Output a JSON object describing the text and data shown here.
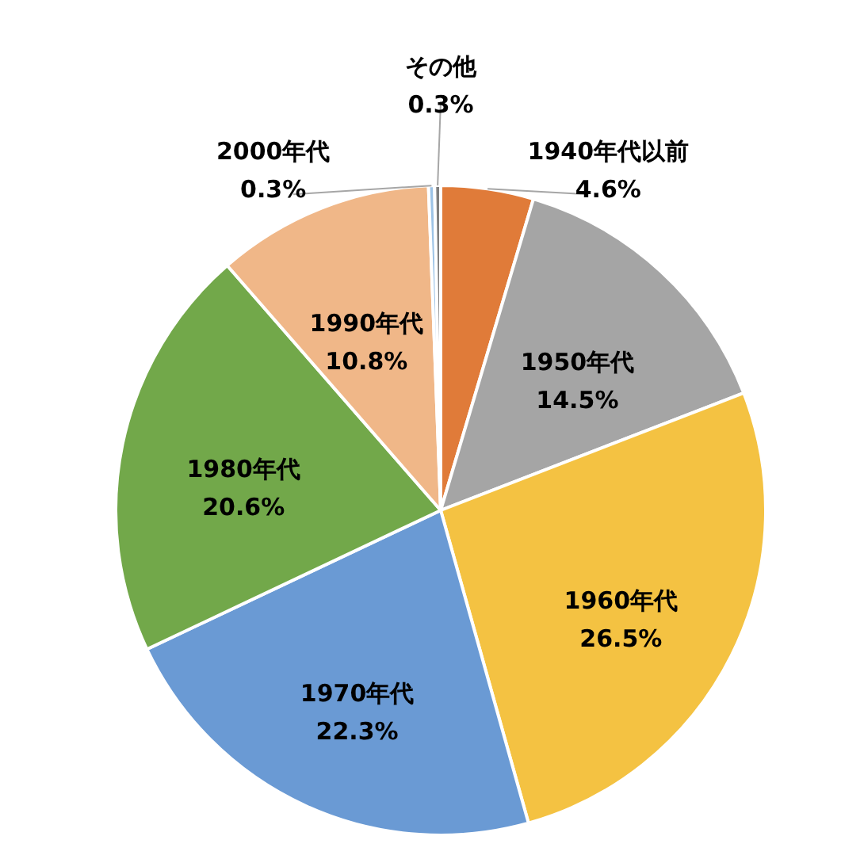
{
  "chart_data": {
    "type": "pie",
    "categories": [
      "1940年代以前",
      "1950年代",
      "1960年代",
      "1970年代",
      "1980年代",
      "1990年代",
      "2000年代",
      "その他"
    ],
    "values": [
      4.6,
      14.5,
      26.5,
      22.3,
      20.6,
      10.8,
      0.3,
      0.3
    ],
    "value_labels": [
      "4.6%",
      "14.5%",
      "26.5%",
      "22.3%",
      "20.6%",
      "10.8%",
      "0.3%",
      "0.3%"
    ],
    "colors": [
      "#e07b39",
      "#a5a5a5",
      "#f4c242",
      "#6a9ad4",
      "#72a84a",
      "#f0b788",
      "#9dc3e6",
      "#7f7f7f"
    ]
  }
}
